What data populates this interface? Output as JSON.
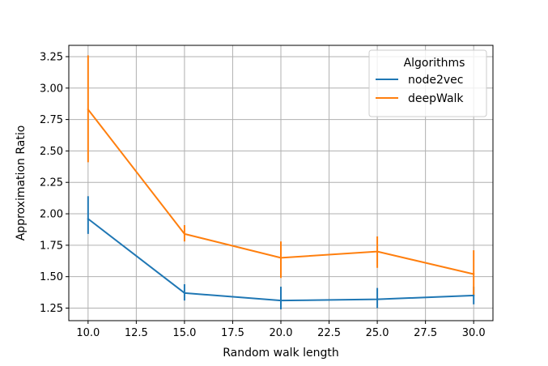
{
  "chart_data": {
    "type": "line",
    "xlabel": "Random walk length",
    "ylabel": "Approximation Ratio",
    "xlim": [
      9.0,
      31.0
    ],
    "ylim": [
      1.15,
      3.34
    ],
    "xticks": [
      "10.0",
      "12.5",
      "15.0",
      "17.5",
      "20.0",
      "22.5",
      "25.0",
      "27.5",
      "30.0"
    ],
    "yticks": [
      "1.25",
      "1.50",
      "1.75",
      "2.00",
      "2.25",
      "2.50",
      "2.75",
      "3.00",
      "3.25"
    ],
    "grid": true,
    "legend": {
      "title": "Algorithms",
      "placement": "top-right"
    },
    "x": [
      10,
      15,
      20,
      25,
      30
    ],
    "series": [
      {
        "name": "node2vec",
        "color": "#1f77b4",
        "values": [
          1.96,
          1.37,
          1.31,
          1.32,
          1.35
        ],
        "err_low": [
          1.84,
          1.31,
          1.24,
          1.25,
          1.28
        ],
        "err_high": [
          2.14,
          1.44,
          1.42,
          1.41,
          1.42
        ]
      },
      {
        "name": "deepWalk",
        "color": "#ff7f0e",
        "values": [
          2.83,
          1.84,
          1.65,
          1.7,
          1.52
        ],
        "err_low": [
          2.41,
          1.78,
          1.49,
          1.57,
          1.35
        ],
        "err_high": [
          3.26,
          1.91,
          1.78,
          1.82,
          1.71
        ]
      }
    ]
  }
}
